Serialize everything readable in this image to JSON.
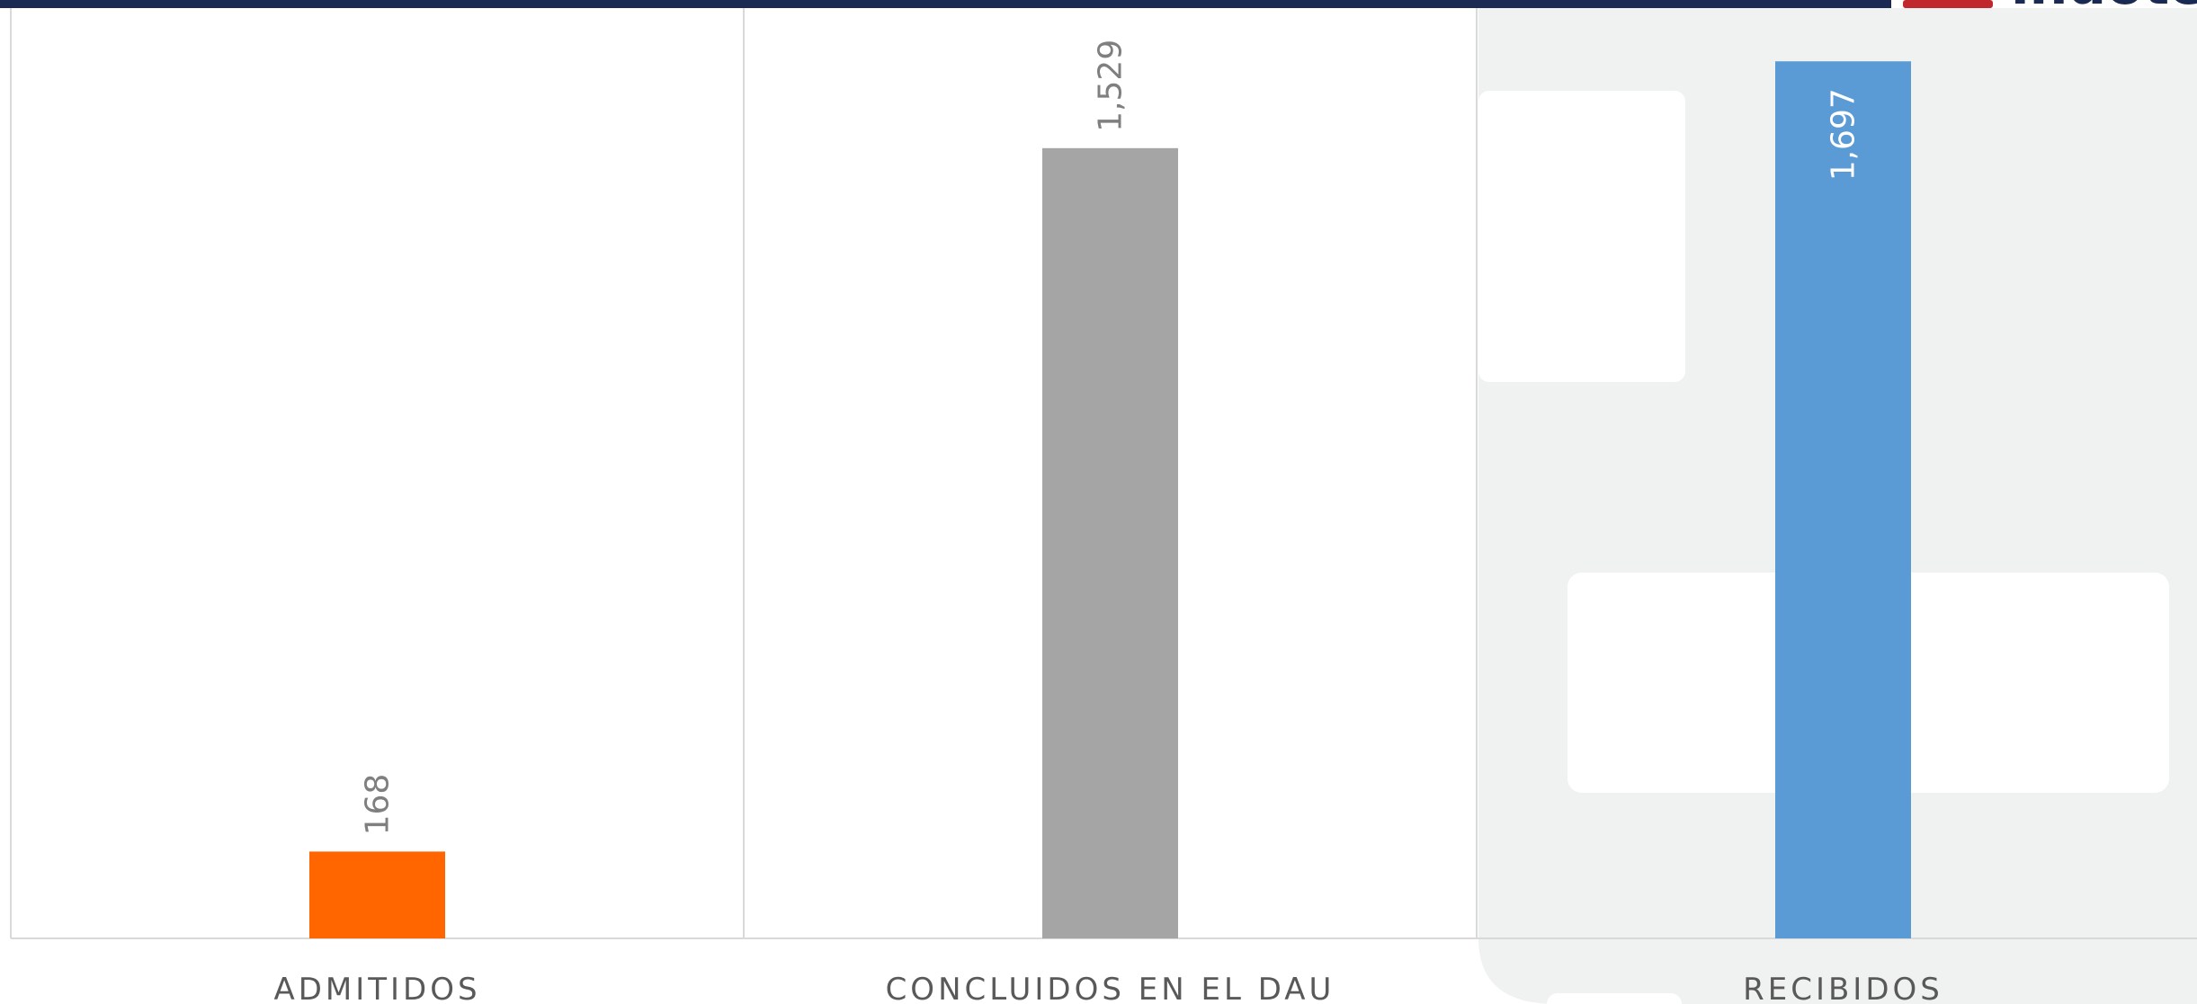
{
  "chart_data": {
    "type": "bar",
    "categories": [
      "ADMITIDOS",
      "CONCLUIDOS EN EL DAU",
      "RECIBIDOS"
    ],
    "values": [
      168,
      1529,
      1697
    ],
    "value_labels": [
      "168",
      "1,529",
      "1,697"
    ],
    "colors": [
      "#FF6600",
      "#A5A5A5",
      "#5B9BD5"
    ],
    "ylim": [
      0,
      1800
    ]
  },
  "logo": "indotel"
}
